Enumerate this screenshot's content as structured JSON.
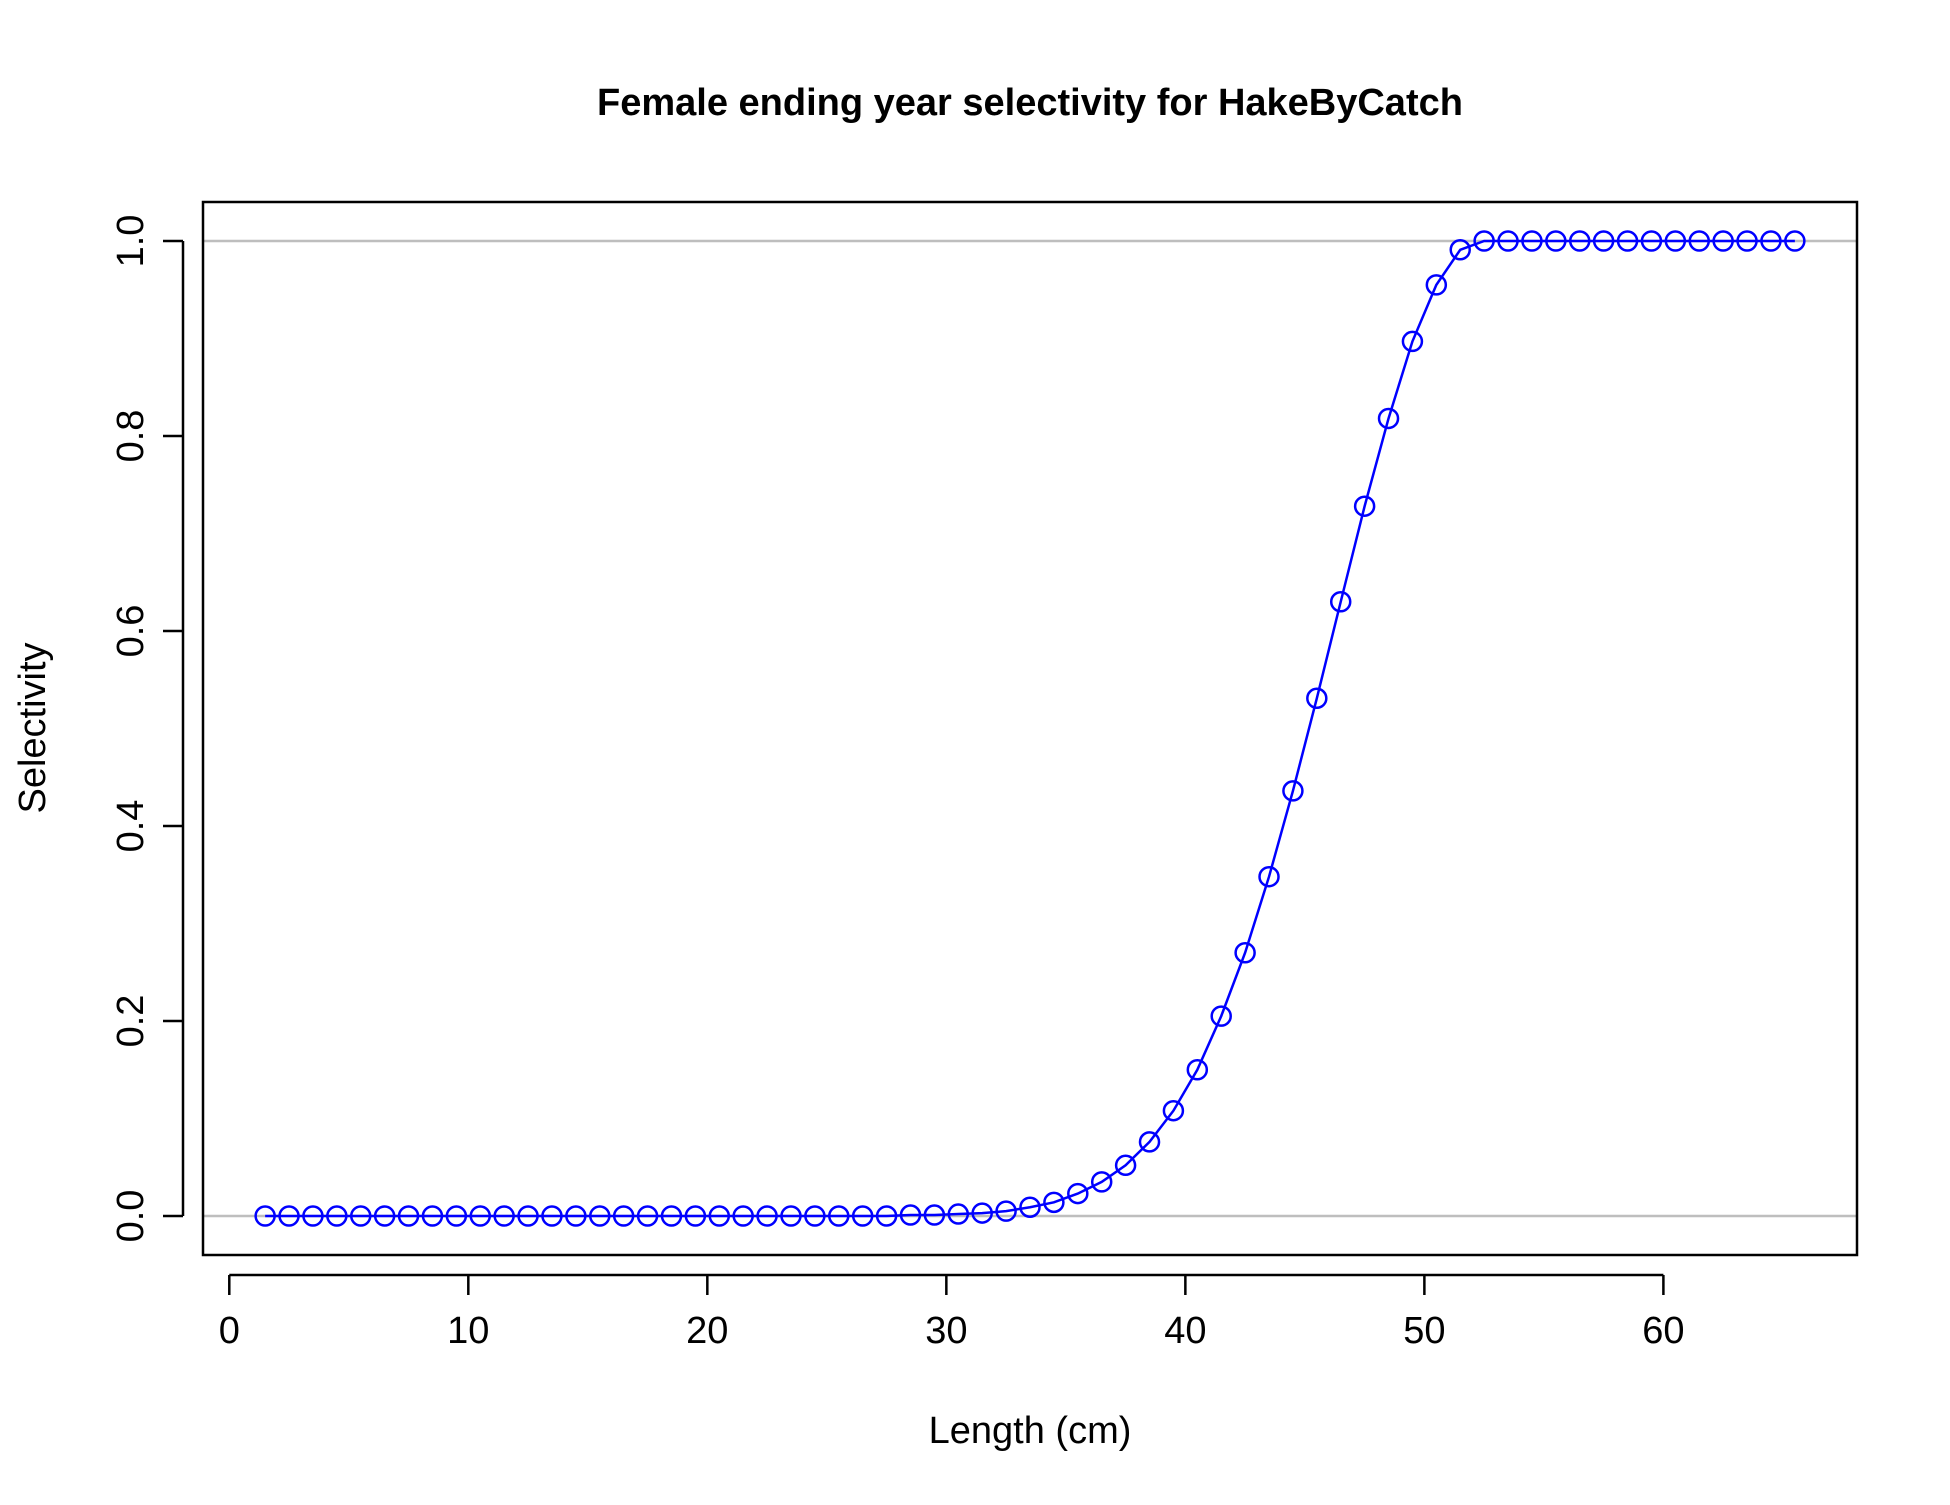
{
  "chart_data": {
    "type": "line",
    "title": "Female ending year selectivity for HakeByCatch",
    "xlabel": "Length (cm)",
    "ylabel": "Selectivity",
    "xlim": [
      -1.1,
      68.1
    ],
    "ylim": [
      -0.04,
      1.04
    ],
    "x_ticks": [
      0,
      10,
      20,
      30,
      40,
      50,
      60
    ],
    "x_tick_labels": [
      "0",
      "10",
      "20",
      "30",
      "40",
      "50",
      "60"
    ],
    "y_ticks": [
      0,
      0.2,
      0.4,
      0.6,
      0.8,
      1.0
    ],
    "y_tick_labels": [
      "0.0",
      "0.2",
      "0.4",
      "0.6",
      "0.8",
      "1.0"
    ],
    "reference_lines_y": [
      0,
      1
    ],
    "colors": {
      "series": "#0000ff",
      "reference": "#bebebe",
      "axis": "#000000"
    },
    "grid": false,
    "marker": "open-circle",
    "series": [
      {
        "x": [
          1.5,
          2.5,
          3.5,
          4.5,
          5.5,
          6.5,
          7.5,
          8.5,
          9.5,
          10.5,
          11.5,
          12.5,
          13.5,
          14.5,
          15.5,
          16.5,
          17.5,
          18.5,
          19.5,
          20.5,
          21.5,
          22.5,
          23.5,
          24.5,
          25.5,
          26.5,
          27.5,
          28.5,
          29.5,
          30.5,
          31.5,
          32.5,
          33.5,
          34.5,
          35.5,
          36.5,
          37.5,
          38.5,
          39.5,
          40.5,
          41.5,
          42.5,
          43.5,
          44.5,
          45.5,
          46.5,
          47.5,
          48.5,
          49.5,
          50.5,
          51.5,
          52.5,
          53.5,
          54.5,
          55.5,
          56.5,
          57.5,
          58.5,
          59.5,
          60.5,
          61.5,
          62.5,
          63.5,
          64.5,
          65.5
        ],
        "values": [
          0,
          0,
          0,
          0,
          0,
          0,
          0,
          0,
          0,
          0,
          0,
          0,
          0,
          0,
          0,
          0,
          0,
          0,
          0,
          0,
          0,
          0,
          0,
          0,
          0,
          0,
          0,
          0.001,
          0.001,
          0.002,
          0.003,
          0.005,
          0.009,
          0.014,
          0.023,
          0.035,
          0.052,
          0.076,
          0.108,
          0.15,
          0.205,
          0.27,
          0.348,
          0.436,
          0.531,
          0.63,
          0.728,
          0.818,
          0.897,
          0.955,
          0.991,
          1.0,
          1.0,
          1.0,
          1.0,
          1.0,
          1.0,
          1.0,
          1.0,
          1.0,
          1.0,
          1.0,
          1.0,
          1.0,
          1.0
        ]
      }
    ]
  }
}
